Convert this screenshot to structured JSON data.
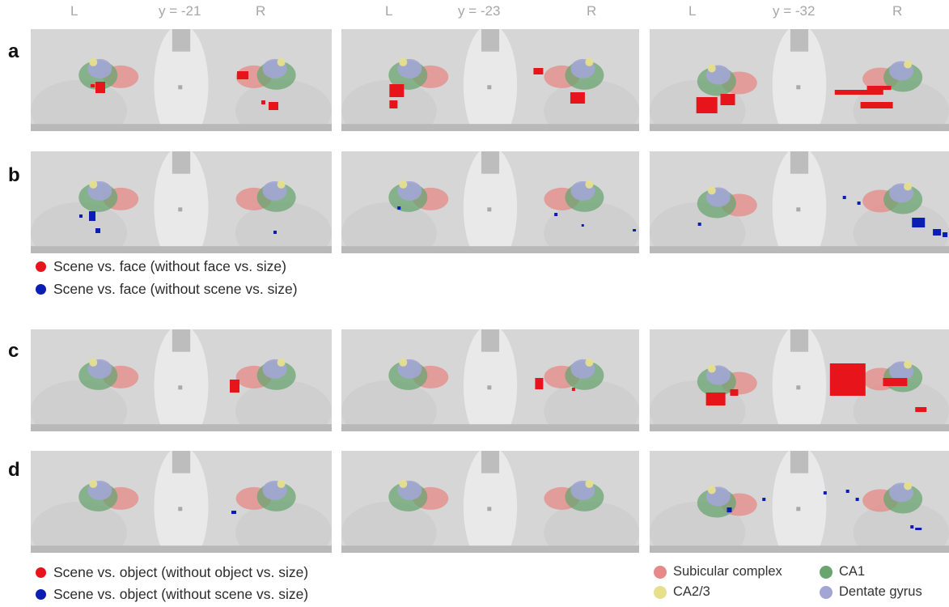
{
  "columns": [
    {
      "left": "L",
      "coord": "y = -21",
      "right": "R"
    },
    {
      "left": "L",
      "coord": "y = -23",
      "right": "R"
    },
    {
      "left": "L",
      "coord": "y = -32",
      "right": "R"
    }
  ],
  "rows": [
    "a",
    "b",
    "c",
    "d"
  ],
  "legend_ab": [
    {
      "label": "Scene vs. face (without face vs. size)",
      "color": "#e8141b"
    },
    {
      "label": "Scene vs. face (without scene vs. size)",
      "color": "#0a1eb4"
    }
  ],
  "legend_cd": [
    {
      "label": "Scene vs. object (without object vs. size)",
      "color": "#e8141b"
    },
    {
      "label": "Scene vs. object (without scene vs. size)",
      "color": "#0a1eb4"
    }
  ],
  "roi_legend": [
    {
      "label": "Subicular complex",
      "color": "#e58a86"
    },
    {
      "label": "CA1",
      "color": "#6aa570"
    },
    {
      "label": "CA2/3",
      "color": "#e6df8c"
    },
    {
      "label": "Dentate gyrus",
      "color": "#a3a5d4"
    }
  ],
  "colors": {
    "activation_red": "#e8141b",
    "activation_blue": "#0a1eb4",
    "label_gray": "#a7a7a7"
  }
}
